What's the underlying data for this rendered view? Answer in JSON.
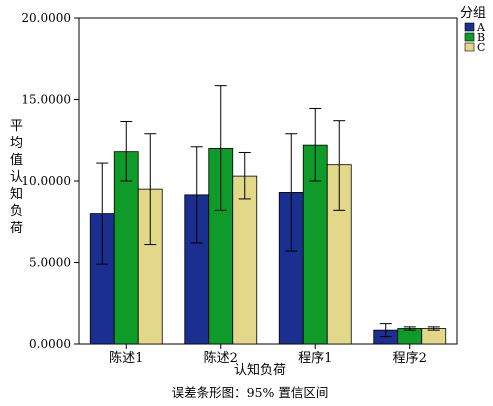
{
  "chart_data": {
    "type": "bar",
    "title": "",
    "xlabel": "认知负荷",
    "ylabel": "平均值认知负荷",
    "caption": "误差条形图：95% 置信区间",
    "categories": [
      "陈述1",
      "陈述2",
      "程序1",
      "程序2"
    ],
    "ylim": [
      0,
      20
    ],
    "yticks": [
      "0.0000",
      "5.0000",
      "10.0000",
      "15.0000",
      "20.0000"
    ],
    "legend": {
      "title": "分组",
      "position": "top-right"
    },
    "series": [
      {
        "name": "A",
        "color": "#1a2f8f",
        "values": [
          8.0,
          9.15,
          9.3,
          0.85
        ],
        "ci_low": [
          4.9,
          6.2,
          5.7,
          0.45
        ],
        "ci_high": [
          11.1,
          12.1,
          12.9,
          1.25
        ]
      },
      {
        "name": "B",
        "color": "#0f9b2a",
        "values": [
          11.8,
          12.0,
          12.2,
          0.95
        ],
        "ci_low": [
          10.0,
          8.2,
          10.0,
          0.85
        ],
        "ci_high": [
          13.65,
          15.85,
          14.45,
          1.05
        ]
      },
      {
        "name": "C",
        "color": "#e3d78a",
        "values": [
          9.5,
          10.3,
          11.0,
          0.95
        ],
        "ci_low": [
          6.1,
          8.9,
          8.2,
          0.85
        ],
        "ci_high": [
          12.9,
          11.75,
          13.7,
          1.05
        ]
      }
    ]
  }
}
